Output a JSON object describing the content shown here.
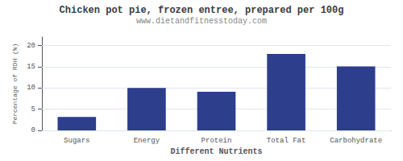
{
  "chart_data": {
    "type": "bar",
    "title": "Chicken pot pie, frozen entree, prepared per 100g",
    "subtitle": "www.dietandfitnesstoday.com",
    "xlabel": "Different Nutrients",
    "ylabel": "Percentage of RDH (%)",
    "categories": [
      "Sugars",
      "Energy",
      "Protein",
      "Total Fat",
      "Carbohydrate"
    ],
    "values": [
      3.2,
      10.0,
      9.1,
      18.0,
      15.1
    ],
    "color": "#2d3e8c",
    "ylim": [
      0,
      22
    ],
    "yticks": [
      0,
      5,
      10,
      15,
      20
    ],
    "grid": true
  }
}
